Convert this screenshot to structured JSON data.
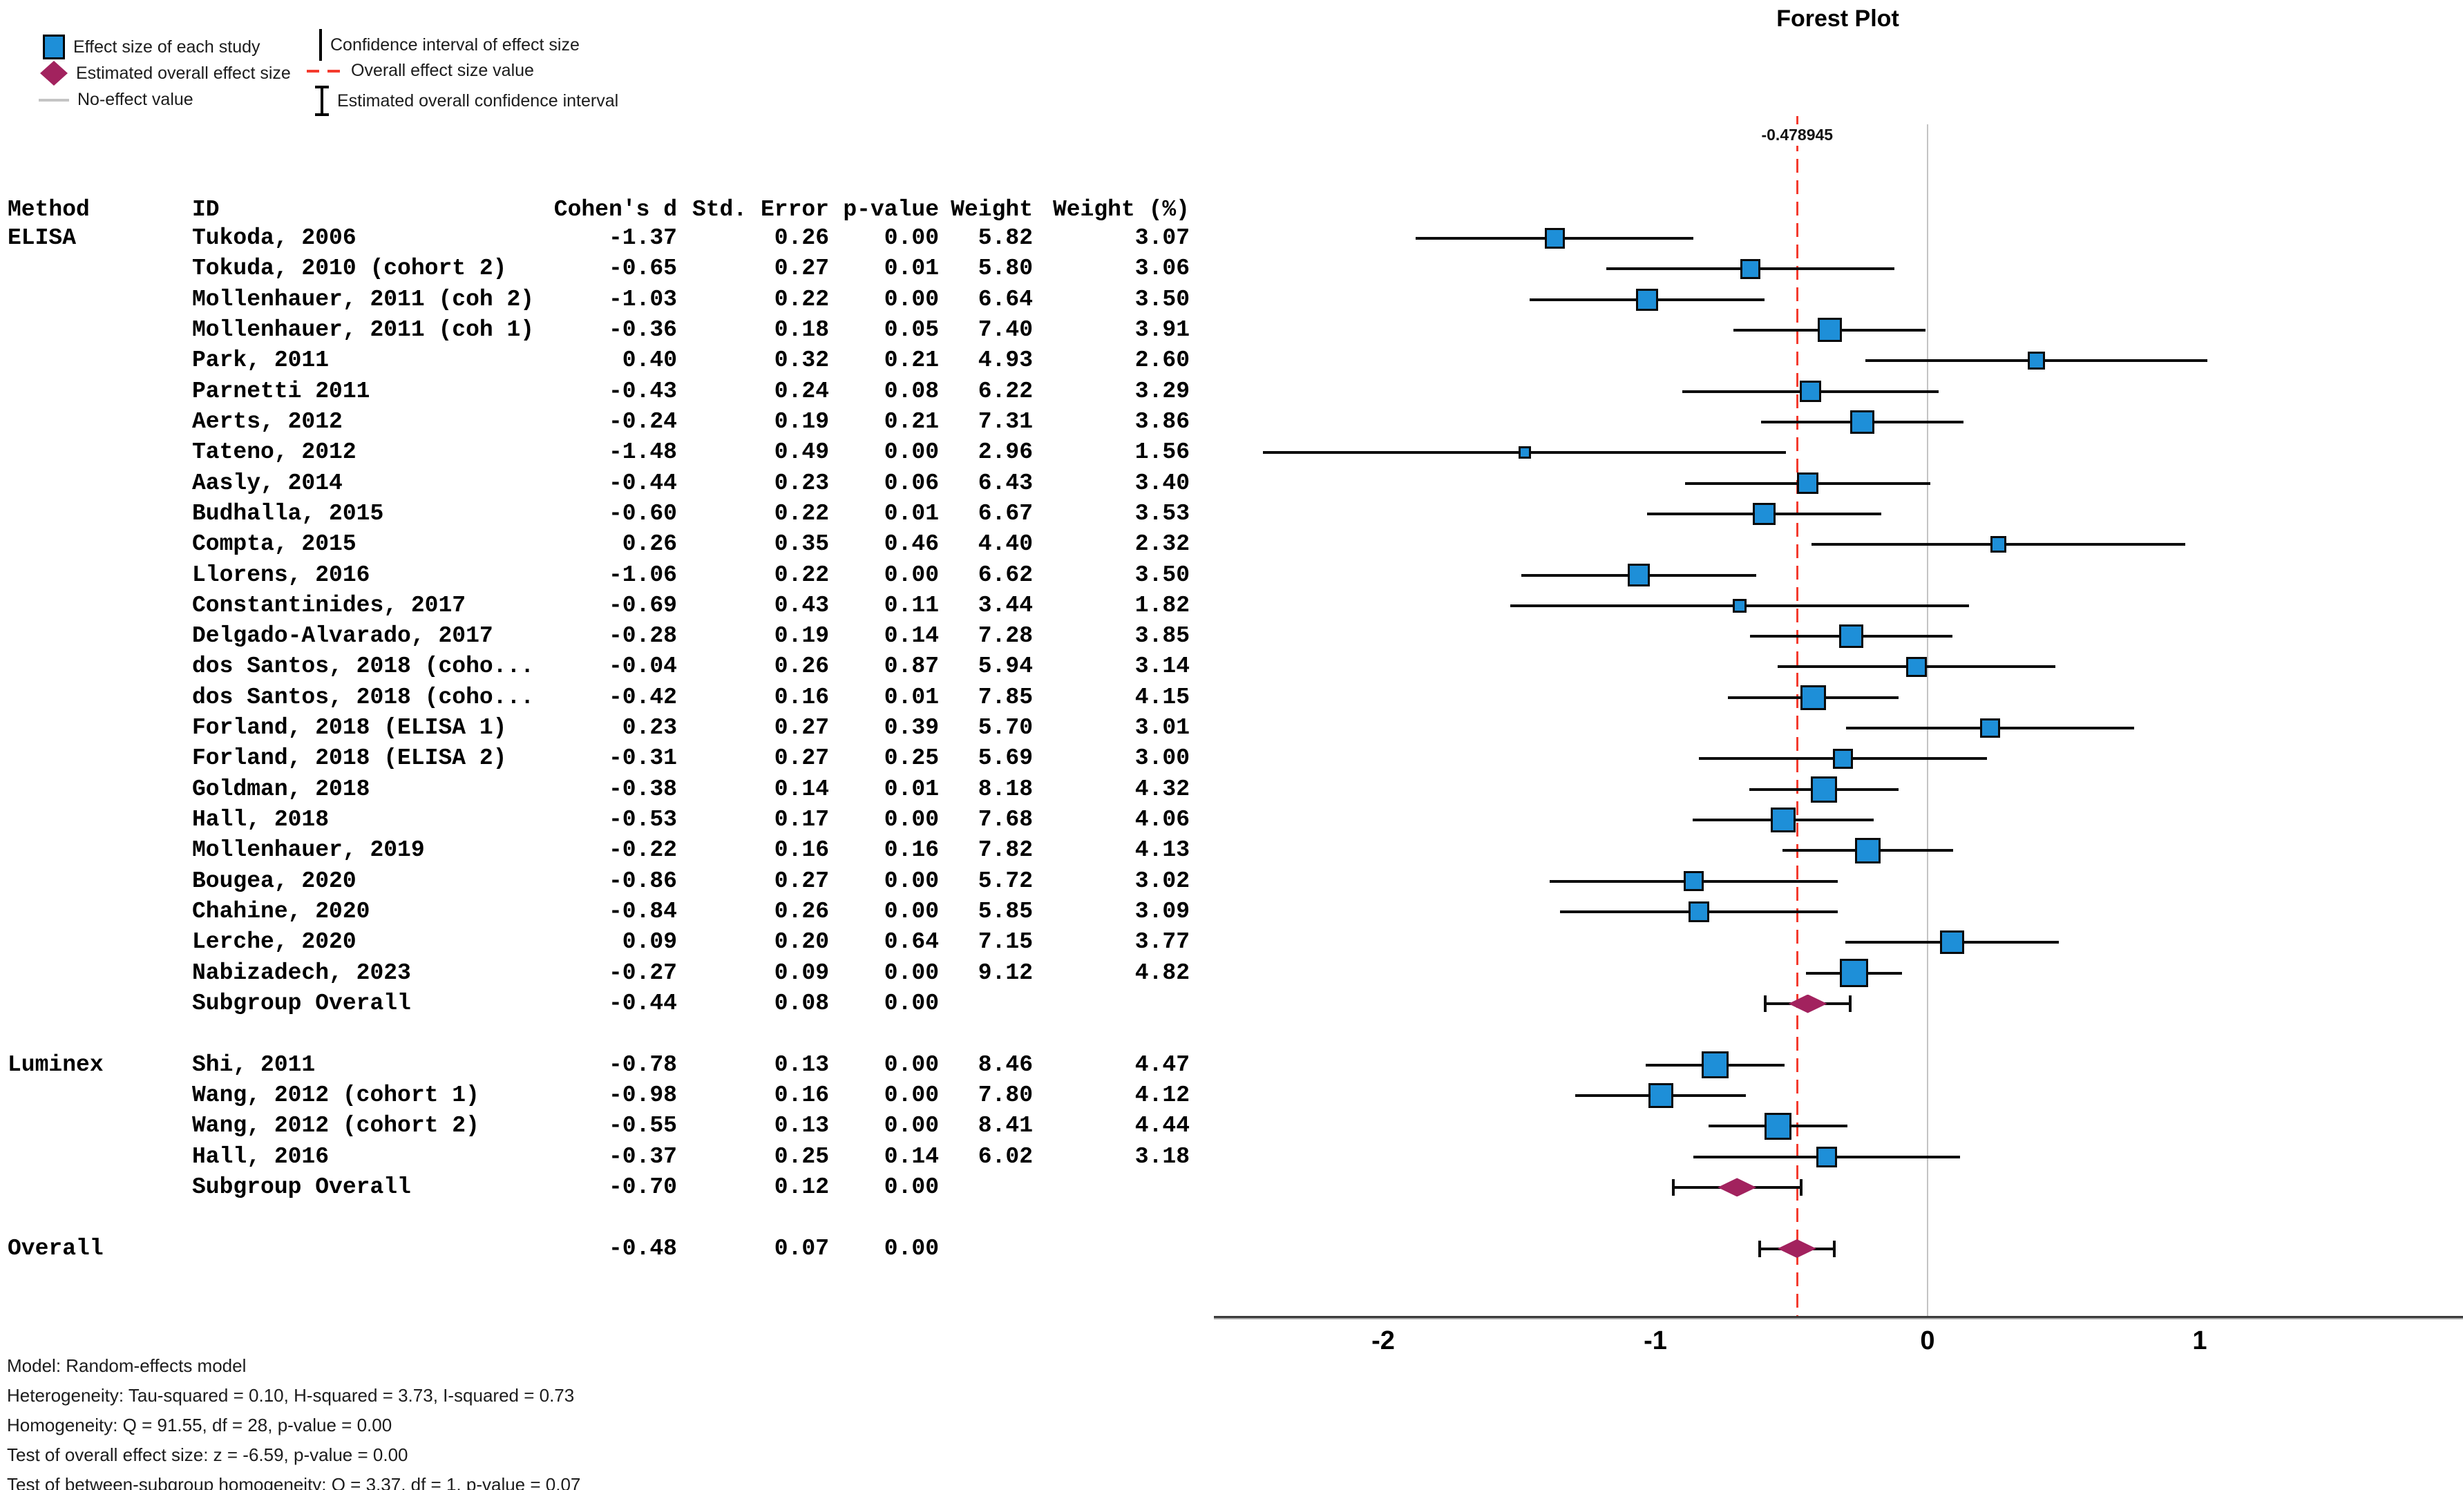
{
  "title": "Forest Plot",
  "legend": {
    "items": [
      {
        "icon": "study-square-icon",
        "label": "Effect size of each study"
      },
      {
        "icon": "overall-diamond-icon",
        "label": "Estimated overall effect size"
      },
      {
        "icon": "no-effect-line-icon",
        "label": "No-effect value"
      },
      {
        "icon": "ci-line-icon",
        "label": "Confidence interval of effect size"
      },
      {
        "icon": "overall-value-line-icon",
        "label": "Overall effect size value"
      },
      {
        "icon": "overall-ci-icon",
        "label": "Estimated overall confidence interval"
      }
    ]
  },
  "table_headers": {
    "method": "Method",
    "id": "ID",
    "d": "Cohen's d",
    "se": "Std. Error",
    "p": "p-value",
    "w": "Weight",
    "wp": "Weight (%)"
  },
  "chart_data": {
    "type": "forest",
    "title": "Forest Plot",
    "x_ticks": [
      "-2",
      "-1",
      "0",
      "1"
    ],
    "xlim": [
      -2.62,
      1.96
    ],
    "no_effect_value": 0,
    "overall_effect_value": -0.478945,
    "overall_line_label": "-0.478945",
    "ci_multiplier": 1.96,
    "colors": {
      "study_square": "#1E8FD8",
      "overall_diamond": "#A2225E",
      "overall_line": "#F43B2E",
      "no_effect_line": "#C4C4C4"
    },
    "rows": [
      {
        "slot": 0,
        "method": "ELISA",
        "id": "Tukoda, 2006",
        "d": "-1.37",
        "se": "0.26",
        "p": "0.00",
        "w": "5.82",
        "wp": "3.07",
        "kind": "study"
      },
      {
        "slot": 1,
        "id": "Tokuda, 2010 (cohort 2)",
        "d": "-0.65",
        "se": "0.27",
        "p": "0.01",
        "w": "5.80",
        "wp": "3.06",
        "kind": "study"
      },
      {
        "slot": 2,
        "id": "Mollenhauer, 2011 (coh 2)",
        "d": "-1.03",
        "se": "0.22",
        "p": "0.00",
        "w": "6.64",
        "wp": "3.50",
        "kind": "study"
      },
      {
        "slot": 3,
        "id": "Mollenhauer, 2011 (coh 1)",
        "d": "-0.36",
        "se": "0.18",
        "p": "0.05",
        "w": "7.40",
        "wp": "3.91",
        "kind": "study"
      },
      {
        "slot": 4,
        "id": "Park, 2011",
        "d": "0.40",
        "se": "0.32",
        "p": "0.21",
        "w": "4.93",
        "wp": "2.60",
        "kind": "study"
      },
      {
        "slot": 5,
        "id": "Parnetti 2011",
        "d": "-0.43",
        "se": "0.24",
        "p": "0.08",
        "w": "6.22",
        "wp": "3.29",
        "kind": "study"
      },
      {
        "slot": 6,
        "id": "Aerts, 2012",
        "d": "-0.24",
        "se": "0.19",
        "p": "0.21",
        "w": "7.31",
        "wp": "3.86",
        "kind": "study"
      },
      {
        "slot": 7,
        "id": "Tateno, 2012",
        "d": "-1.48",
        "se": "0.49",
        "p": "0.00",
        "w": "2.96",
        "wp": "1.56",
        "kind": "study"
      },
      {
        "slot": 8,
        "id": "Aasly, 2014",
        "d": "-0.44",
        "se": "0.23",
        "p": "0.06",
        "w": "6.43",
        "wp": "3.40",
        "kind": "study"
      },
      {
        "slot": 9,
        "id": "Budhalla, 2015",
        "d": "-0.60",
        "se": "0.22",
        "p": "0.01",
        "w": "6.67",
        "wp": "3.53",
        "kind": "study"
      },
      {
        "slot": 10,
        "id": "Compta, 2015",
        "d": "0.26",
        "se": "0.35",
        "p": "0.46",
        "w": "4.40",
        "wp": "2.32",
        "kind": "study"
      },
      {
        "slot": 11,
        "id": "Llorens, 2016",
        "d": "-1.06",
        "se": "0.22",
        "p": "0.00",
        "w": "6.62",
        "wp": "3.50",
        "kind": "study"
      },
      {
        "slot": 12,
        "id": "Constantinides, 2017",
        "d": "-0.69",
        "se": "0.43",
        "p": "0.11",
        "w": "3.44",
        "wp": "1.82",
        "kind": "study"
      },
      {
        "slot": 13,
        "id": "Delgado-Alvarado, 2017",
        "d": "-0.28",
        "se": "0.19",
        "p": "0.14",
        "w": "7.28",
        "wp": "3.85",
        "kind": "study"
      },
      {
        "slot": 14,
        "id": "dos Santos, 2018 (coho...",
        "d": "-0.04",
        "se": "0.26",
        "p": "0.87",
        "w": "5.94",
        "wp": "3.14",
        "kind": "study"
      },
      {
        "slot": 15,
        "id": "dos Santos, 2018 (coho...",
        "d": "-0.42",
        "se": "0.16",
        "p": "0.01",
        "w": "7.85",
        "wp": "4.15",
        "kind": "study"
      },
      {
        "slot": 16,
        "id": "Forland, 2018 (ELISA 1)",
        "d": "0.23",
        "se": "0.27",
        "p": "0.39",
        "w": "5.70",
        "wp": "3.01",
        "kind": "study"
      },
      {
        "slot": 17,
        "id": "Forland, 2018 (ELISA 2)",
        "d": "-0.31",
        "se": "0.27",
        "p": "0.25",
        "w": "5.69",
        "wp": "3.00",
        "kind": "study"
      },
      {
        "slot": 18,
        "id": "Goldman, 2018",
        "d": "-0.38",
        "se": "0.14",
        "p": "0.01",
        "w": "8.18",
        "wp": "4.32",
        "kind": "study"
      },
      {
        "slot": 19,
        "id": "Hall, 2018",
        "d": "-0.53",
        "se": "0.17",
        "p": "0.00",
        "w": "7.68",
        "wp": "4.06",
        "kind": "study"
      },
      {
        "slot": 20,
        "id": "Mollenhauer, 2019",
        "d": "-0.22",
        "se": "0.16",
        "p": "0.16",
        "w": "7.82",
        "wp": "4.13",
        "kind": "study"
      },
      {
        "slot": 21,
        "id": "Bougea, 2020",
        "d": "-0.86",
        "se": "0.27",
        "p": "0.00",
        "w": "5.72",
        "wp": "3.02",
        "kind": "study"
      },
      {
        "slot": 22,
        "id": "Chahine, 2020",
        "d": "-0.84",
        "se": "0.26",
        "p": "0.00",
        "w": "5.85",
        "wp": "3.09",
        "kind": "study"
      },
      {
        "slot": 23,
        "id": "Lerche, 2020",
        "d": "0.09",
        "se": "0.20",
        "p": "0.64",
        "w": "7.15",
        "wp": "3.77",
        "kind": "study"
      },
      {
        "slot": 24,
        "id": "Nabizadech, 2023",
        "d": "-0.27",
        "se": "0.09",
        "p": "0.00",
        "w": "9.12",
        "wp": "4.82",
        "kind": "study"
      },
      {
        "slot": 25,
        "id": "Subgroup Overall",
        "d": "-0.44",
        "se": "0.08",
        "p": "0.00",
        "w": "",
        "wp": "",
        "kind": "summary"
      },
      {
        "slot": 27,
        "method": "Luminex",
        "id": "Shi, 2011",
        "d": "-0.78",
        "se": "0.13",
        "p": "0.00",
        "w": "8.46",
        "wp": "4.47",
        "kind": "study"
      },
      {
        "slot": 28,
        "id": "Wang, 2012 (cohort 1)",
        "d": "-0.98",
        "se": "0.16",
        "p": "0.00",
        "w": "7.80",
        "wp": "4.12",
        "kind": "study"
      },
      {
        "slot": 29,
        "id": "Wang, 2012 (cohort 2)",
        "d": "-0.55",
        "se": "0.13",
        "p": "0.00",
        "w": "8.41",
        "wp": "4.44",
        "kind": "study"
      },
      {
        "slot": 30,
        "id": "Hall, 2016",
        "d": "-0.37",
        "se": "0.25",
        "p": "0.14",
        "w": "6.02",
        "wp": "3.18",
        "kind": "study"
      },
      {
        "slot": 31,
        "id": "Subgroup Overall",
        "d": "-0.70",
        "se": "0.12",
        "p": "0.00",
        "w": "",
        "wp": "",
        "kind": "summary"
      },
      {
        "slot": 33,
        "method": "Overall",
        "id": "",
        "d": "-0.48",
        "se": "0.07",
        "p": "0.00",
        "w": "",
        "wp": "",
        "kind": "summary"
      }
    ]
  },
  "footer": {
    "lines": [
      "Model: Random-effects model",
      "Heterogeneity: Tau-squared = 0.10, H-squared = 3.73, I-squared = 0.73",
      "Homogeneity: Q = 91.55, df = 28, p-value = 0.00",
      "Test of overall effect size: z = -6.59, p-value = 0.00",
      "Test of between-subgroup homogeneity: Q = 3.37, df = 1, p-value = 0.07"
    ]
  }
}
